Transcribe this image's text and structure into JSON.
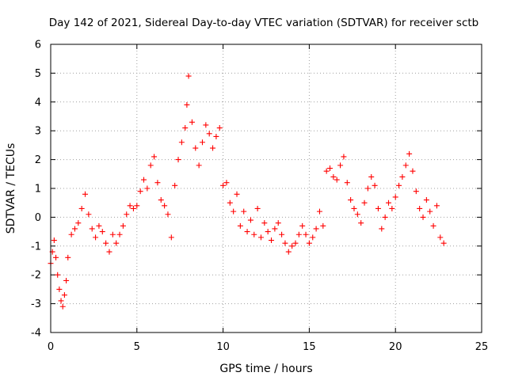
{
  "chart_data": {
    "type": "scatter",
    "title": "Day 142 of 2021, Sidereal Day-to-day VTEC variation (SDTVAR) for receiver sctb",
    "xlabel": "GPS time / hours",
    "ylabel": "SDTVAR / TECUs",
    "xlim": [
      0,
      25
    ],
    "ylim": [
      -4,
      6
    ],
    "xticks": [
      0,
      5,
      10,
      15,
      20,
      25
    ],
    "yticks": [
      -4,
      -3,
      -2,
      -1,
      0,
      1,
      2,
      3,
      4,
      5,
      6
    ],
    "grid": true,
    "marker": "+",
    "color": "#ff0000",
    "series": [
      {
        "name": "sctb",
        "x": [
          0.0,
          0.1,
          0.2,
          0.3,
          0.4,
          0.5,
          0.6,
          0.7,
          0.8,
          0.9,
          1.0,
          1.2,
          1.4,
          1.6,
          1.8,
          2.0,
          2.2,
          2.4,
          2.6,
          2.8,
          3.0,
          3.2,
          3.4,
          3.6,
          3.8,
          4.0,
          4.2,
          4.4,
          4.6,
          4.8,
          5.0,
          5.2,
          5.4,
          5.6,
          5.8,
          6.0,
          6.2,
          6.4,
          6.6,
          6.8,
          7.0,
          7.2,
          7.4,
          7.6,
          7.8,
          7.9,
          8.0,
          8.2,
          8.4,
          8.6,
          8.8,
          9.0,
          9.2,
          9.4,
          9.6,
          9.8,
          10.0,
          10.2,
          10.4,
          10.6,
          10.8,
          11.0,
          11.2,
          11.4,
          11.6,
          11.8,
          12.0,
          12.2,
          12.4,
          12.6,
          12.8,
          13.0,
          13.2,
          13.4,
          13.6,
          13.8,
          14.0,
          14.2,
          14.4,
          14.6,
          14.8,
          15.0,
          15.2,
          15.4,
          15.6,
          15.8,
          16.0,
          16.2,
          16.4,
          16.6,
          16.8,
          17.0,
          17.2,
          17.4,
          17.6,
          17.8,
          18.0,
          18.2,
          18.4,
          18.6,
          18.8,
          19.0,
          19.2,
          19.4,
          19.6,
          19.8,
          20.0,
          20.2,
          20.4,
          20.6,
          20.8,
          21.0,
          21.2,
          21.4,
          21.6,
          21.8,
          22.0,
          22.2,
          22.4,
          22.6,
          22.8
        ],
        "y": [
          -1.6,
          -1.2,
          -0.8,
          -1.4,
          -2.0,
          -2.5,
          -2.9,
          -3.1,
          -2.7,
          -2.2,
          -1.4,
          -0.6,
          -0.4,
          -0.2,
          0.3,
          0.8,
          0.1,
          -0.4,
          -0.7,
          -0.3,
          -0.5,
          -0.9,
          -1.2,
          -0.6,
          -0.9,
          -0.6,
          -0.3,
          0.1,
          0.4,
          0.3,
          0.4,
          0.9,
          1.3,
          1.0,
          1.8,
          2.1,
          1.2,
          0.6,
          0.4,
          0.1,
          -0.7,
          1.1,
          2.0,
          2.6,
          3.1,
          3.9,
          4.9,
          3.3,
          2.4,
          1.8,
          2.6,
          3.2,
          2.9,
          2.4,
          2.8,
          3.1,
          1.1,
          1.2,
          0.5,
          0.2,
          0.8,
          -0.3,
          0.2,
          -0.5,
          -0.1,
          -0.6,
          0.3,
          -0.7,
          -0.2,
          -0.5,
          -0.8,
          -0.4,
          -0.2,
          -0.6,
          -0.9,
          -1.2,
          -1.0,
          -0.9,
          -0.6,
          -0.3,
          -0.6,
          -0.9,
          -0.7,
          -0.4,
          0.2,
          -0.3,
          1.6,
          1.7,
          1.4,
          1.3,
          1.8,
          2.1,
          1.2,
          0.6,
          0.3,
          0.1,
          -0.2,
          0.5,
          1.0,
          1.4,
          1.1,
          0.3,
          -0.4,
          0.0,
          0.5,
          0.3,
          0.7,
          1.1,
          1.4,
          1.8,
          2.2,
          1.6,
          0.9,
          0.3,
          0.0,
          0.6,
          0.2,
          -0.3,
          0.4,
          -0.7,
          -0.9
        ]
      }
    ]
  }
}
